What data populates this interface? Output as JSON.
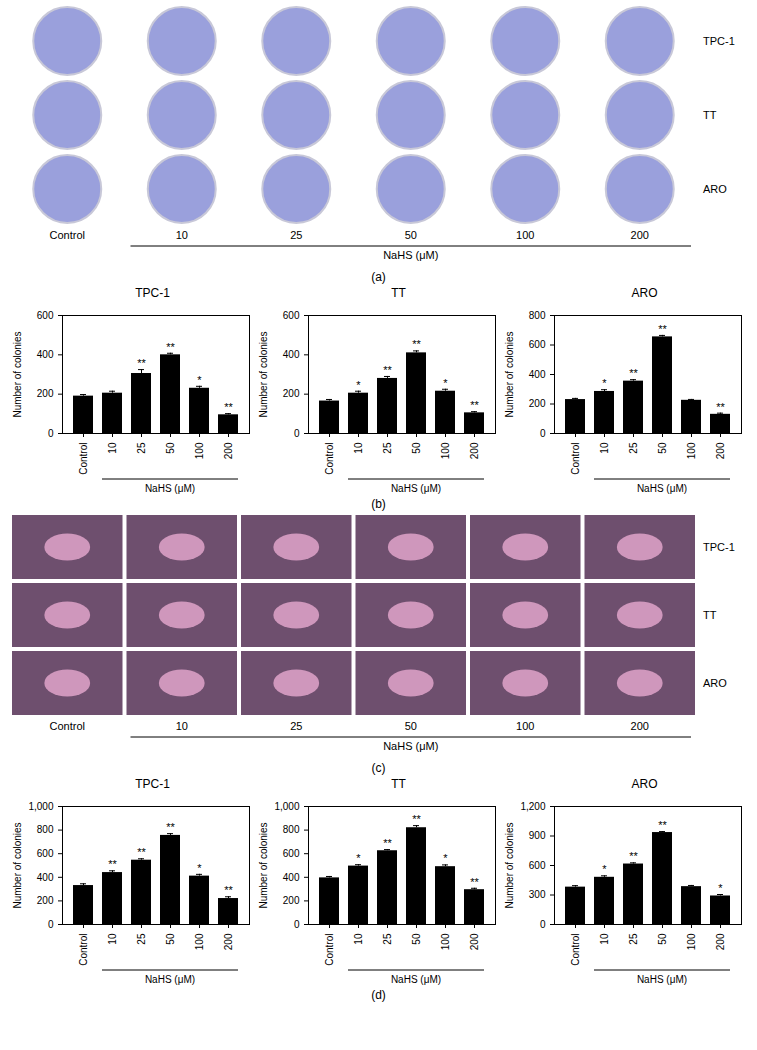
{
  "image_panels": [
    {
      "label": "(a)",
      "rows": [
        "TPC-1",
        "TT",
        "ARO"
      ],
      "columns": [
        "Control",
        "10",
        "25",
        "50",
        "100",
        "200"
      ],
      "group_label": "NaHS (μM)",
      "style": "dish"
    },
    {
      "label": "(c)",
      "rows": [
        "TPC-1",
        "TT",
        "ARO"
      ],
      "columns": [
        "Control",
        "10",
        "25",
        "50",
        "100",
        "200"
      ],
      "group_label": "NaHS (μM)",
      "style": "field"
    }
  ],
  "chart_groups": [
    {
      "label": "(b)"
    },
    {
      "label": "(d)"
    }
  ],
  "chart_data": [
    {
      "type": "bar",
      "group": "(b)",
      "title": "TPC-1",
      "xlabel": "NaHS (μM)",
      "ylabel": "Number of colonies",
      "color": "#000000",
      "categories": [
        "Control",
        "10",
        "25",
        "50",
        "100",
        "200"
      ],
      "values": [
        190,
        205,
        305,
        400,
        230,
        95
      ],
      "errors": [
        8,
        10,
        20,
        8,
        10,
        6
      ],
      "annotations": [
        {
          "category": "25",
          "text": "**"
        },
        {
          "category": "50",
          "text": "**"
        },
        {
          "category": "100",
          "text": "*"
        },
        {
          "category": "200",
          "text": "**"
        }
      ],
      "ylim": [
        0,
        600
      ],
      "yticks": [
        0,
        200,
        400,
        600
      ]
    },
    {
      "type": "bar",
      "group": "(b)",
      "title": "TT",
      "xlabel": "NaHS (μM)",
      "ylabel": "Number of colonies",
      "color": "#000000",
      "categories": [
        "Control",
        "10",
        "25",
        "50",
        "100",
        "200"
      ],
      "values": [
        165,
        205,
        280,
        410,
        215,
        105
      ],
      "errors": [
        8,
        10,
        10,
        10,
        10,
        6
      ],
      "annotations": [
        {
          "category": "10",
          "text": "*"
        },
        {
          "category": "25",
          "text": "**"
        },
        {
          "category": "50",
          "text": "**"
        },
        {
          "category": "100",
          "text": "*"
        },
        {
          "category": "200",
          "text": "**"
        }
      ],
      "ylim": [
        0,
        600
      ],
      "yticks": [
        0,
        200,
        400,
        600
      ]
    },
    {
      "type": "bar",
      "group": "(b)",
      "title": "ARO",
      "xlabel": "NaHS (μM)",
      "ylabel": "Number of colonies",
      "color": "#000000",
      "categories": [
        "Control",
        "10",
        "25",
        "50",
        "100",
        "200"
      ],
      "values": [
        230,
        285,
        355,
        655,
        225,
        130
      ],
      "errors": [
        8,
        12,
        10,
        10,
        6,
        8
      ],
      "annotations": [
        {
          "category": "10",
          "text": "*"
        },
        {
          "category": "25",
          "text": "**"
        },
        {
          "category": "50",
          "text": "**"
        },
        {
          "category": "200",
          "text": "**"
        }
      ],
      "ylim": [
        0,
        800
      ],
      "yticks": [
        0,
        200,
        400,
        600,
        800
      ]
    },
    {
      "type": "bar",
      "group": "(d)",
      "title": "TPC-1",
      "xlabel": "NaHS (μM)",
      "ylabel": "Number of colonies",
      "color": "#000000",
      "categories": [
        "Control",
        "10",
        "25",
        "50",
        "100",
        "200"
      ],
      "values": [
        330,
        440,
        545,
        755,
        410,
        220
      ],
      "errors": [
        15,
        15,
        12,
        15,
        15,
        15
      ],
      "annotations": [
        {
          "category": "10",
          "text": "**"
        },
        {
          "category": "25",
          "text": "**"
        },
        {
          "category": "50",
          "text": "**"
        },
        {
          "category": "100",
          "text": "*"
        },
        {
          "category": "200",
          "text": "**"
        }
      ],
      "ylim": [
        0,
        1000
      ],
      "yticks": [
        0,
        200,
        400,
        600,
        800,
        1000
      ]
    },
    {
      "type": "bar",
      "group": "(d)",
      "title": "TT",
      "xlabel": "NaHS (μM)",
      "ylabel": "Number of colonies",
      "color": "#000000",
      "categories": [
        "Control",
        "10",
        "25",
        "50",
        "100",
        "200"
      ],
      "values": [
        395,
        495,
        625,
        820,
        490,
        295
      ],
      "errors": [
        12,
        12,
        10,
        18,
        15,
        12
      ],
      "annotations": [
        {
          "category": "10",
          "text": "*"
        },
        {
          "category": "25",
          "text": "**"
        },
        {
          "category": "50",
          "text": "**"
        },
        {
          "category": "100",
          "text": "*"
        },
        {
          "category": "200",
          "text": "**"
        }
      ],
      "ylim": [
        0,
        1000
      ],
      "yticks": [
        0,
        200,
        400,
        600,
        800,
        1000
      ]
    },
    {
      "type": "bar",
      "group": "(d)",
      "title": "ARO",
      "xlabel": "NaHS (μM)",
      "ylabel": "Number of colonies",
      "color": "#000000",
      "categories": [
        "Control",
        "10",
        "25",
        "50",
        "100",
        "200"
      ],
      "values": [
        380,
        480,
        615,
        935,
        385,
        290
      ],
      "errors": [
        15,
        15,
        12,
        10,
        12,
        15
      ],
      "annotations": [
        {
          "category": "10",
          "text": "*"
        },
        {
          "category": "25",
          "text": "**"
        },
        {
          "category": "50",
          "text": "**"
        },
        {
          "category": "200",
          "text": "*"
        }
      ],
      "ylim": [
        0,
        1200
      ],
      "yticks": [
        0,
        300,
        600,
        900,
        1200
      ]
    }
  ]
}
